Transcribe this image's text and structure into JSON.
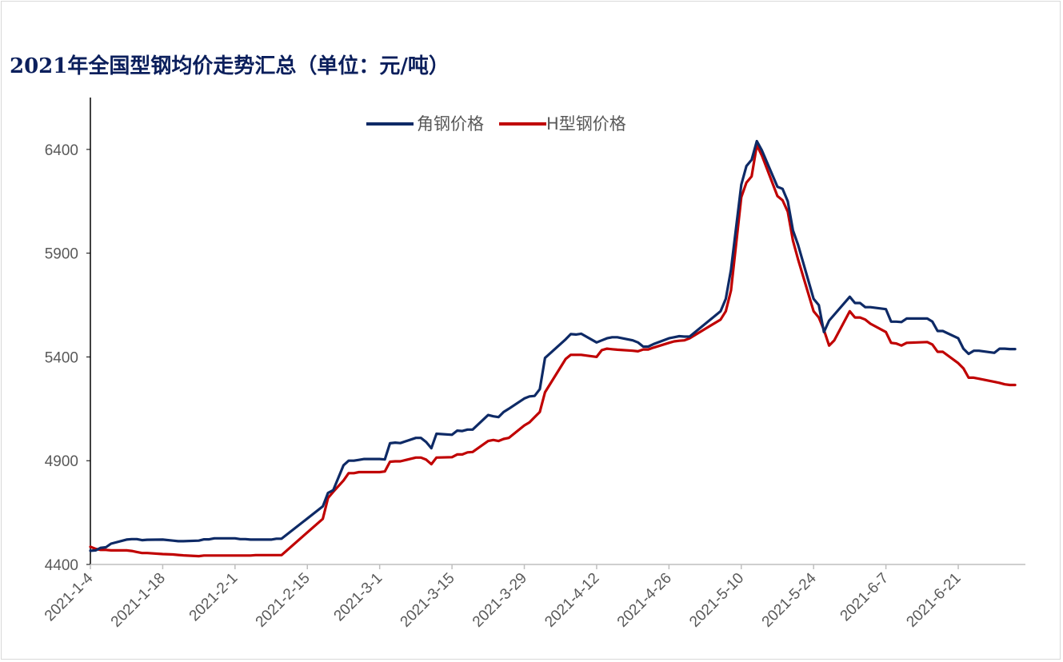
{
  "title": "2021年全国型钢均价走势汇总（单位：元/吨）",
  "colors": {
    "angle_steel": "#0e2a66",
    "h_beam": "#c00000",
    "axis": "#000000",
    "tick_text": "#595959"
  },
  "chart_data": {
    "type": "line",
    "title": "2021年全国型钢均价走势汇总（单位：元/吨）",
    "xlabel": "",
    "ylabel": "",
    "ylim": [
      4400,
      6650
    ],
    "yticks": [
      4400,
      4900,
      5400,
      5900,
      6400
    ],
    "xlim": [
      "2021-01-04",
      "2021-07-04"
    ],
    "xticks": [
      "2021-1-4",
      "2021-1-18",
      "2021-2-1",
      "2021-2-15",
      "2021-3-1",
      "2021-3-15",
      "2021-3-29",
      "2021-4-12",
      "2021-4-26",
      "2021-5-10",
      "2021-5-24",
      "2021-6-7",
      "2021-6-21"
    ],
    "legend_position": "top-center",
    "grid": false,
    "series": [
      {
        "name": "角钢价格",
        "points": [
          [
            "2021-01-04",
            4466
          ],
          [
            "2021-01-05",
            4468
          ],
          [
            "2021-01-06",
            4480
          ],
          [
            "2021-01-07",
            4483
          ],
          [
            "2021-01-08",
            4500
          ],
          [
            "2021-01-11",
            4520
          ],
          [
            "2021-01-12",
            4522
          ],
          [
            "2021-01-13",
            4522
          ],
          [
            "2021-01-14",
            4517
          ],
          [
            "2021-01-15",
            4519
          ],
          [
            "2021-01-18",
            4520
          ],
          [
            "2021-01-20",
            4515
          ],
          [
            "2021-01-21",
            4512
          ],
          [
            "2021-01-22",
            4512
          ],
          [
            "2021-01-25",
            4515
          ],
          [
            "2021-01-26",
            4521
          ],
          [
            "2021-01-27",
            4521
          ],
          [
            "2021-01-28",
            4526
          ],
          [
            "2021-01-29",
            4526
          ],
          [
            "2021-02-01",
            4526
          ],
          [
            "2021-02-02",
            4522
          ],
          [
            "2021-02-03",
            4522
          ],
          [
            "2021-02-04",
            4520
          ],
          [
            "2021-02-05",
            4520
          ],
          [
            "2021-02-08",
            4520
          ],
          [
            "2021-02-09",
            4524
          ],
          [
            "2021-02-10",
            4524
          ],
          [
            "2021-02-18",
            4680
          ],
          [
            "2021-02-19",
            4745
          ],
          [
            "2021-02-20",
            4758
          ],
          [
            "2021-02-22",
            4878
          ],
          [
            "2021-02-23",
            4900
          ],
          [
            "2021-02-24",
            4900
          ],
          [
            "2021-02-25",
            4904
          ],
          [
            "2021-02-26",
            4908
          ],
          [
            "2021-03-01",
            4908
          ],
          [
            "2021-03-02",
            4906
          ],
          [
            "2021-03-03",
            4984
          ],
          [
            "2021-03-04",
            4987
          ],
          [
            "2021-03-05",
            4985
          ],
          [
            "2021-03-08",
            5010
          ],
          [
            "2021-03-09",
            5010
          ],
          [
            "2021-03-10",
            4990
          ],
          [
            "2021-03-11",
            4960
          ],
          [
            "2021-03-12",
            5030
          ],
          [
            "2021-03-15",
            5025
          ],
          [
            "2021-03-16",
            5045
          ],
          [
            "2021-03-17",
            5043
          ],
          [
            "2021-03-18",
            5050
          ],
          [
            "2021-03-19",
            5050
          ],
          [
            "2021-03-22",
            5120
          ],
          [
            "2021-03-23",
            5114
          ],
          [
            "2021-03-24",
            5110
          ],
          [
            "2021-03-25",
            5135
          ],
          [
            "2021-03-26",
            5150
          ],
          [
            "2021-03-29",
            5200
          ],
          [
            "2021-03-30",
            5210
          ],
          [
            "2021-03-31",
            5212
          ],
          [
            "2021-04-01",
            5245
          ],
          [
            "2021-04-02",
            5395
          ],
          [
            "2021-04-06",
            5485
          ],
          [
            "2021-04-07",
            5510
          ],
          [
            "2021-04-08",
            5508
          ],
          [
            "2021-04-09",
            5512
          ],
          [
            "2021-04-12",
            5470
          ],
          [
            "2021-04-13",
            5480
          ],
          [
            "2021-04-14",
            5490
          ],
          [
            "2021-04-15",
            5495
          ],
          [
            "2021-04-16",
            5495
          ],
          [
            "2021-04-19",
            5480
          ],
          [
            "2021-04-20",
            5470
          ],
          [
            "2021-04-21",
            5450
          ],
          [
            "2021-04-22",
            5450
          ],
          [
            "2021-04-23",
            5462
          ],
          [
            "2021-04-26",
            5490
          ],
          [
            "2021-04-27",
            5495
          ],
          [
            "2021-04-28",
            5500
          ],
          [
            "2021-04-29",
            5498
          ],
          [
            "2021-04-30",
            5498
          ],
          [
            "2021-05-06",
            5620
          ],
          [
            "2021-05-07",
            5680
          ],
          [
            "2021-05-08",
            5820
          ],
          [
            "2021-05-10",
            6230
          ],
          [
            "2021-05-11",
            6320
          ],
          [
            "2021-05-12",
            6350
          ],
          [
            "2021-05-13",
            6440
          ],
          [
            "2021-05-14",
            6395
          ],
          [
            "2021-05-17",
            6220
          ],
          [
            "2021-05-18",
            6210
          ],
          [
            "2021-05-19",
            6150
          ],
          [
            "2021-05-20",
            6010
          ],
          [
            "2021-05-21",
            5940
          ],
          [
            "2021-05-24",
            5680
          ],
          [
            "2021-05-25",
            5650
          ],
          [
            "2021-05-26",
            5520
          ],
          [
            "2021-05-27",
            5575
          ],
          [
            "2021-05-31",
            5690
          ],
          [
            "2021-06-01",
            5660
          ],
          [
            "2021-06-02",
            5660
          ],
          [
            "2021-06-03",
            5640
          ],
          [
            "2021-06-04",
            5640
          ],
          [
            "2021-06-07",
            5630
          ],
          [
            "2021-06-08",
            5570
          ],
          [
            "2021-06-09",
            5570
          ],
          [
            "2021-06-10",
            5568
          ],
          [
            "2021-06-11",
            5585
          ],
          [
            "2021-06-15",
            5585
          ],
          [
            "2021-06-16",
            5570
          ],
          [
            "2021-06-17",
            5525
          ],
          [
            "2021-06-18",
            5525
          ],
          [
            "2021-06-21",
            5490
          ],
          [
            "2021-06-22",
            5440
          ],
          [
            "2021-06-23",
            5415
          ],
          [
            "2021-06-24",
            5430
          ],
          [
            "2021-06-25",
            5430
          ],
          [
            "2021-06-28",
            5420
          ],
          [
            "2021-06-29",
            5440
          ],
          [
            "2021-06-30",
            5440
          ],
          [
            "2021-07-01",
            5438
          ],
          [
            "2021-07-02",
            5438
          ]
        ]
      },
      {
        "name": "H型钢价格",
        "points": [
          [
            "2021-01-04",
            4485
          ],
          [
            "2021-01-05",
            4475
          ],
          [
            "2021-01-06",
            4470
          ],
          [
            "2021-01-07",
            4470
          ],
          [
            "2021-01-08",
            4468
          ],
          [
            "2021-01-11",
            4468
          ],
          [
            "2021-01-12",
            4465
          ],
          [
            "2021-01-13",
            4460
          ],
          [
            "2021-01-14",
            4455
          ],
          [
            "2021-01-15",
            4455
          ],
          [
            "2021-01-18",
            4450
          ],
          [
            "2021-01-20",
            4448
          ],
          [
            "2021-01-21",
            4446
          ],
          [
            "2021-01-22",
            4444
          ],
          [
            "2021-01-25",
            4440
          ],
          [
            "2021-01-26",
            4443
          ],
          [
            "2021-01-27",
            4443
          ],
          [
            "2021-01-28",
            4443
          ],
          [
            "2021-01-29",
            4443
          ],
          [
            "2021-02-01",
            4443
          ],
          [
            "2021-02-02",
            4443
          ],
          [
            "2021-02-03",
            4443
          ],
          [
            "2021-02-04",
            4443
          ],
          [
            "2021-02-05",
            4445
          ],
          [
            "2021-02-08",
            4445
          ],
          [
            "2021-02-09",
            4445
          ],
          [
            "2021-02-10",
            4445
          ],
          [
            "2021-02-18",
            4620
          ],
          [
            "2021-02-19",
            4720
          ],
          [
            "2021-02-20",
            4750
          ],
          [
            "2021-02-22",
            4805
          ],
          [
            "2021-02-23",
            4840
          ],
          [
            "2021-02-24",
            4840
          ],
          [
            "2021-02-25",
            4845
          ],
          [
            "2021-02-26",
            4845
          ],
          [
            "2021-03-01",
            4845
          ],
          [
            "2021-03-02",
            4848
          ],
          [
            "2021-03-03",
            4895
          ],
          [
            "2021-03-04",
            4897
          ],
          [
            "2021-03-05",
            4897
          ],
          [
            "2021-03-08",
            4915
          ],
          [
            "2021-03-09",
            4915
          ],
          [
            "2021-03-10",
            4905
          ],
          [
            "2021-03-11",
            4883
          ],
          [
            "2021-03-12",
            4915
          ],
          [
            "2021-03-15",
            4917
          ],
          [
            "2021-03-16",
            4930
          ],
          [
            "2021-03-17",
            4930
          ],
          [
            "2021-03-18",
            4940
          ],
          [
            "2021-03-19",
            4942
          ],
          [
            "2021-03-22",
            4995
          ],
          [
            "2021-03-23",
            5000
          ],
          [
            "2021-03-24",
            4995
          ],
          [
            "2021-03-25",
            5005
          ],
          [
            "2021-03-26",
            5010
          ],
          [
            "2021-03-29",
            5070
          ],
          [
            "2021-03-30",
            5085
          ],
          [
            "2021-03-31",
            5110
          ],
          [
            "2021-04-01",
            5135
          ],
          [
            "2021-04-02",
            5230
          ],
          [
            "2021-04-06",
            5390
          ],
          [
            "2021-04-07",
            5410
          ],
          [
            "2021-04-08",
            5410
          ],
          [
            "2021-04-09",
            5410
          ],
          [
            "2021-04-12",
            5400
          ],
          [
            "2021-04-13",
            5433
          ],
          [
            "2021-04-14",
            5440
          ],
          [
            "2021-04-15",
            5437
          ],
          [
            "2021-04-16",
            5435
          ],
          [
            "2021-04-19",
            5430
          ],
          [
            "2021-04-20",
            5427
          ],
          [
            "2021-04-21",
            5436
          ],
          [
            "2021-04-22",
            5436
          ],
          [
            "2021-04-23",
            5445
          ],
          [
            "2021-04-26",
            5468
          ],
          [
            "2021-04-27",
            5475
          ],
          [
            "2021-04-28",
            5478
          ],
          [
            "2021-04-29",
            5480
          ],
          [
            "2021-04-30",
            5490
          ],
          [
            "2021-05-06",
            5580
          ],
          [
            "2021-05-07",
            5620
          ],
          [
            "2021-05-08",
            5720
          ],
          [
            "2021-05-10",
            6170
          ],
          [
            "2021-05-11",
            6240
          ],
          [
            "2021-05-12",
            6270
          ],
          [
            "2021-05-13",
            6420
          ],
          [
            "2021-05-14",
            6370
          ],
          [
            "2021-05-17",
            6175
          ],
          [
            "2021-05-18",
            6155
          ],
          [
            "2021-05-19",
            6100
          ],
          [
            "2021-05-20",
            5960
          ],
          [
            "2021-05-21",
            5870
          ],
          [
            "2021-05-24",
            5620
          ],
          [
            "2021-05-25",
            5590
          ],
          [
            "2021-05-26",
            5530
          ],
          [
            "2021-05-27",
            5455
          ],
          [
            "2021-05-28",
            5480
          ],
          [
            "2021-05-31",
            5620
          ],
          [
            "2021-06-01",
            5590
          ],
          [
            "2021-06-02",
            5590
          ],
          [
            "2021-06-03",
            5580
          ],
          [
            "2021-06-04",
            5560
          ],
          [
            "2021-06-07",
            5520
          ],
          [
            "2021-06-08",
            5468
          ],
          [
            "2021-06-09",
            5465
          ],
          [
            "2021-06-10",
            5455
          ],
          [
            "2021-06-11",
            5468
          ],
          [
            "2021-06-15",
            5472
          ],
          [
            "2021-06-16",
            5460
          ],
          [
            "2021-06-17",
            5425
          ],
          [
            "2021-06-18",
            5425
          ],
          [
            "2021-06-21",
            5370
          ],
          [
            "2021-06-22",
            5345
          ],
          [
            "2021-06-23",
            5300
          ],
          [
            "2021-06-24",
            5300
          ],
          [
            "2021-06-25",
            5295
          ],
          [
            "2021-06-28",
            5280
          ],
          [
            "2021-06-29",
            5275
          ],
          [
            "2021-06-30",
            5268
          ],
          [
            "2021-07-01",
            5265
          ],
          [
            "2021-07-02",
            5265
          ]
        ]
      }
    ]
  }
}
